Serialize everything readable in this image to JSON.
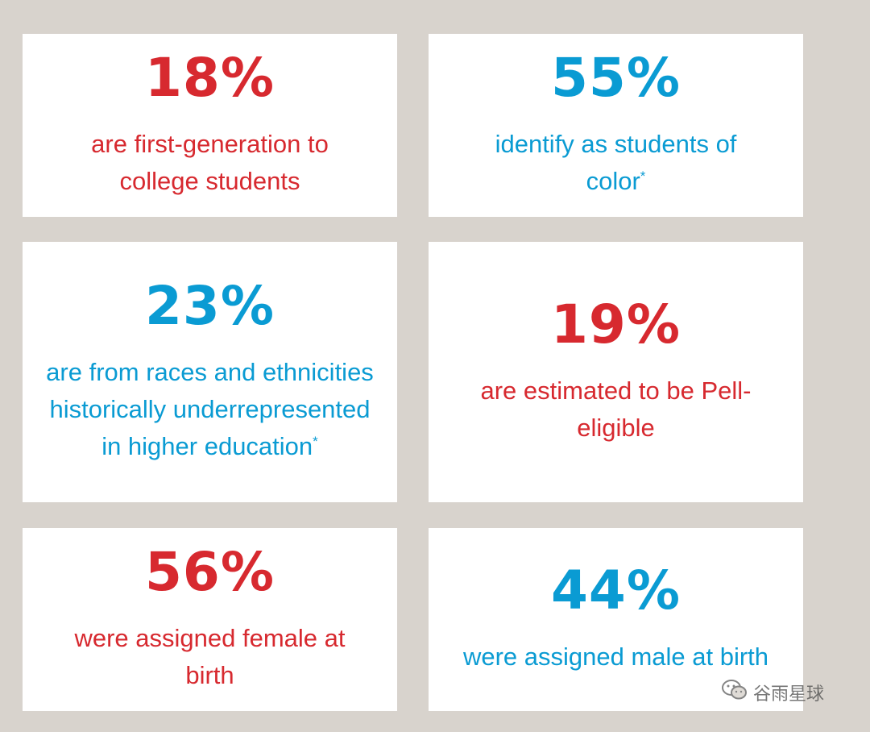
{
  "colors": {
    "background": "#d8d3cd",
    "card": "#ffffff",
    "red": "#d7292f",
    "blue": "#0a9bd3"
  },
  "stats": [
    {
      "value": "18%",
      "text": "are first-generation to college students",
      "asterisk": "",
      "color": "red"
    },
    {
      "value": "55%",
      "text": "identify as students of color",
      "asterisk": "*",
      "color": "blue"
    },
    {
      "value": "23%",
      "text": "are from races and ethnicities historically underrepresented in higher education",
      "asterisk": "*",
      "color": "blue"
    },
    {
      "value": "19%",
      "text": "are estimated to be Pell-eligible",
      "asterisk": "",
      "color": "red"
    },
    {
      "value": "56%",
      "text": "were assigned female at birth",
      "asterisk": "",
      "color": "red"
    },
    {
      "value": "44%",
      "text": "were assigned male at birth",
      "asterisk": "",
      "color": "blue"
    }
  ],
  "watermark": {
    "icon": "wechat-icon",
    "text": "谷雨星球"
  }
}
